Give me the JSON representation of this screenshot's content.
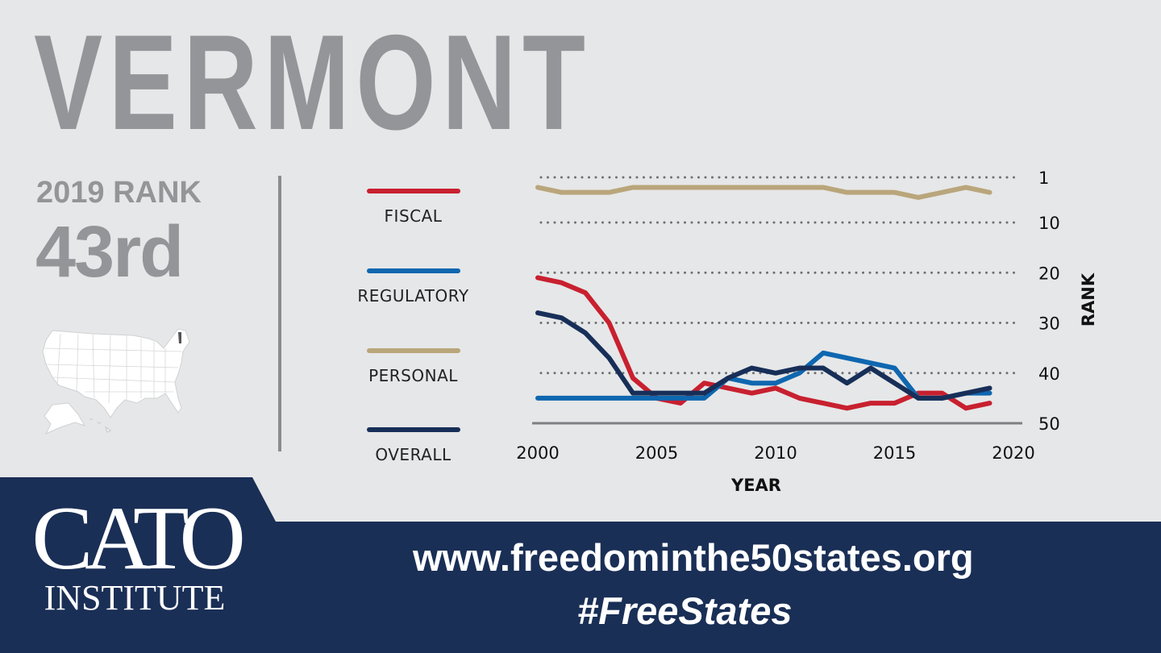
{
  "header": {
    "state": "VERMONT"
  },
  "summary": {
    "rank_label": "2019 RANK",
    "rank_value": "43rd",
    "highlighted_state": "Vermont"
  },
  "legend": [
    {
      "label": "FISCAL",
      "color": "#c8202f"
    },
    {
      "label": "REGULATORY",
      "color": "#0e67b0"
    },
    {
      "label": "PERSONAL",
      "color": "#b9a67b"
    },
    {
      "label": "OVERALL",
      "color": "#172f58"
    }
  ],
  "chart_data": {
    "type": "line",
    "xlabel": "YEAR",
    "ylabel": "RANK",
    "xlim": [
      2000,
      2020
    ],
    "ylim": [
      50,
      1
    ],
    "y_inverted": true,
    "grid": "dotted horizontal",
    "x_ticks": [
      "2000",
      "2005",
      "2010",
      "2015",
      "2020"
    ],
    "y_ticks": [
      "1",
      "10",
      "20",
      "30",
      "40",
      "50"
    ],
    "x": [
      2000,
      2001,
      2002,
      2003,
      2004,
      2005,
      2006,
      2007,
      2008,
      2009,
      2010,
      2011,
      2012,
      2013,
      2014,
      2015,
      2016,
      2017,
      2018,
      2019
    ],
    "series": [
      {
        "name": "FISCAL",
        "color": "#c8202f",
        "values": [
          21,
          22,
          24,
          30,
          41,
          45,
          46,
          42,
          43,
          44,
          43,
          45,
          46,
          47,
          46,
          46,
          44,
          44,
          47,
          46
        ]
      },
      {
        "name": "REGULATORY",
        "color": "#0e67b0",
        "values": [
          45,
          45,
          45,
          45,
          45,
          45,
          45,
          45,
          41,
          42,
          42,
          40,
          36,
          37,
          38,
          39,
          45,
          45,
          44,
          44
        ]
      },
      {
        "name": "PERSONAL",
        "color": "#b9a67b",
        "values": [
          3,
          4,
          4,
          4,
          3,
          3,
          3,
          3,
          3,
          3,
          3,
          3,
          3,
          4,
          4,
          4,
          5,
          4,
          3,
          4
        ]
      },
      {
        "name": "OVERALL",
        "color": "#172f58",
        "values": [
          28,
          29,
          32,
          37,
          44,
          44,
          44,
          44,
          41,
          39,
          40,
          39,
          39,
          42,
          39,
          42,
          45,
          45,
          44,
          43
        ]
      }
    ]
  },
  "footer": {
    "logo_top": "CATO",
    "logo_bottom": "INSTITUTE",
    "url": "www.freedominthe50states.org",
    "hashtag": "#FreeStates",
    "band_color": "#1a2f56"
  }
}
